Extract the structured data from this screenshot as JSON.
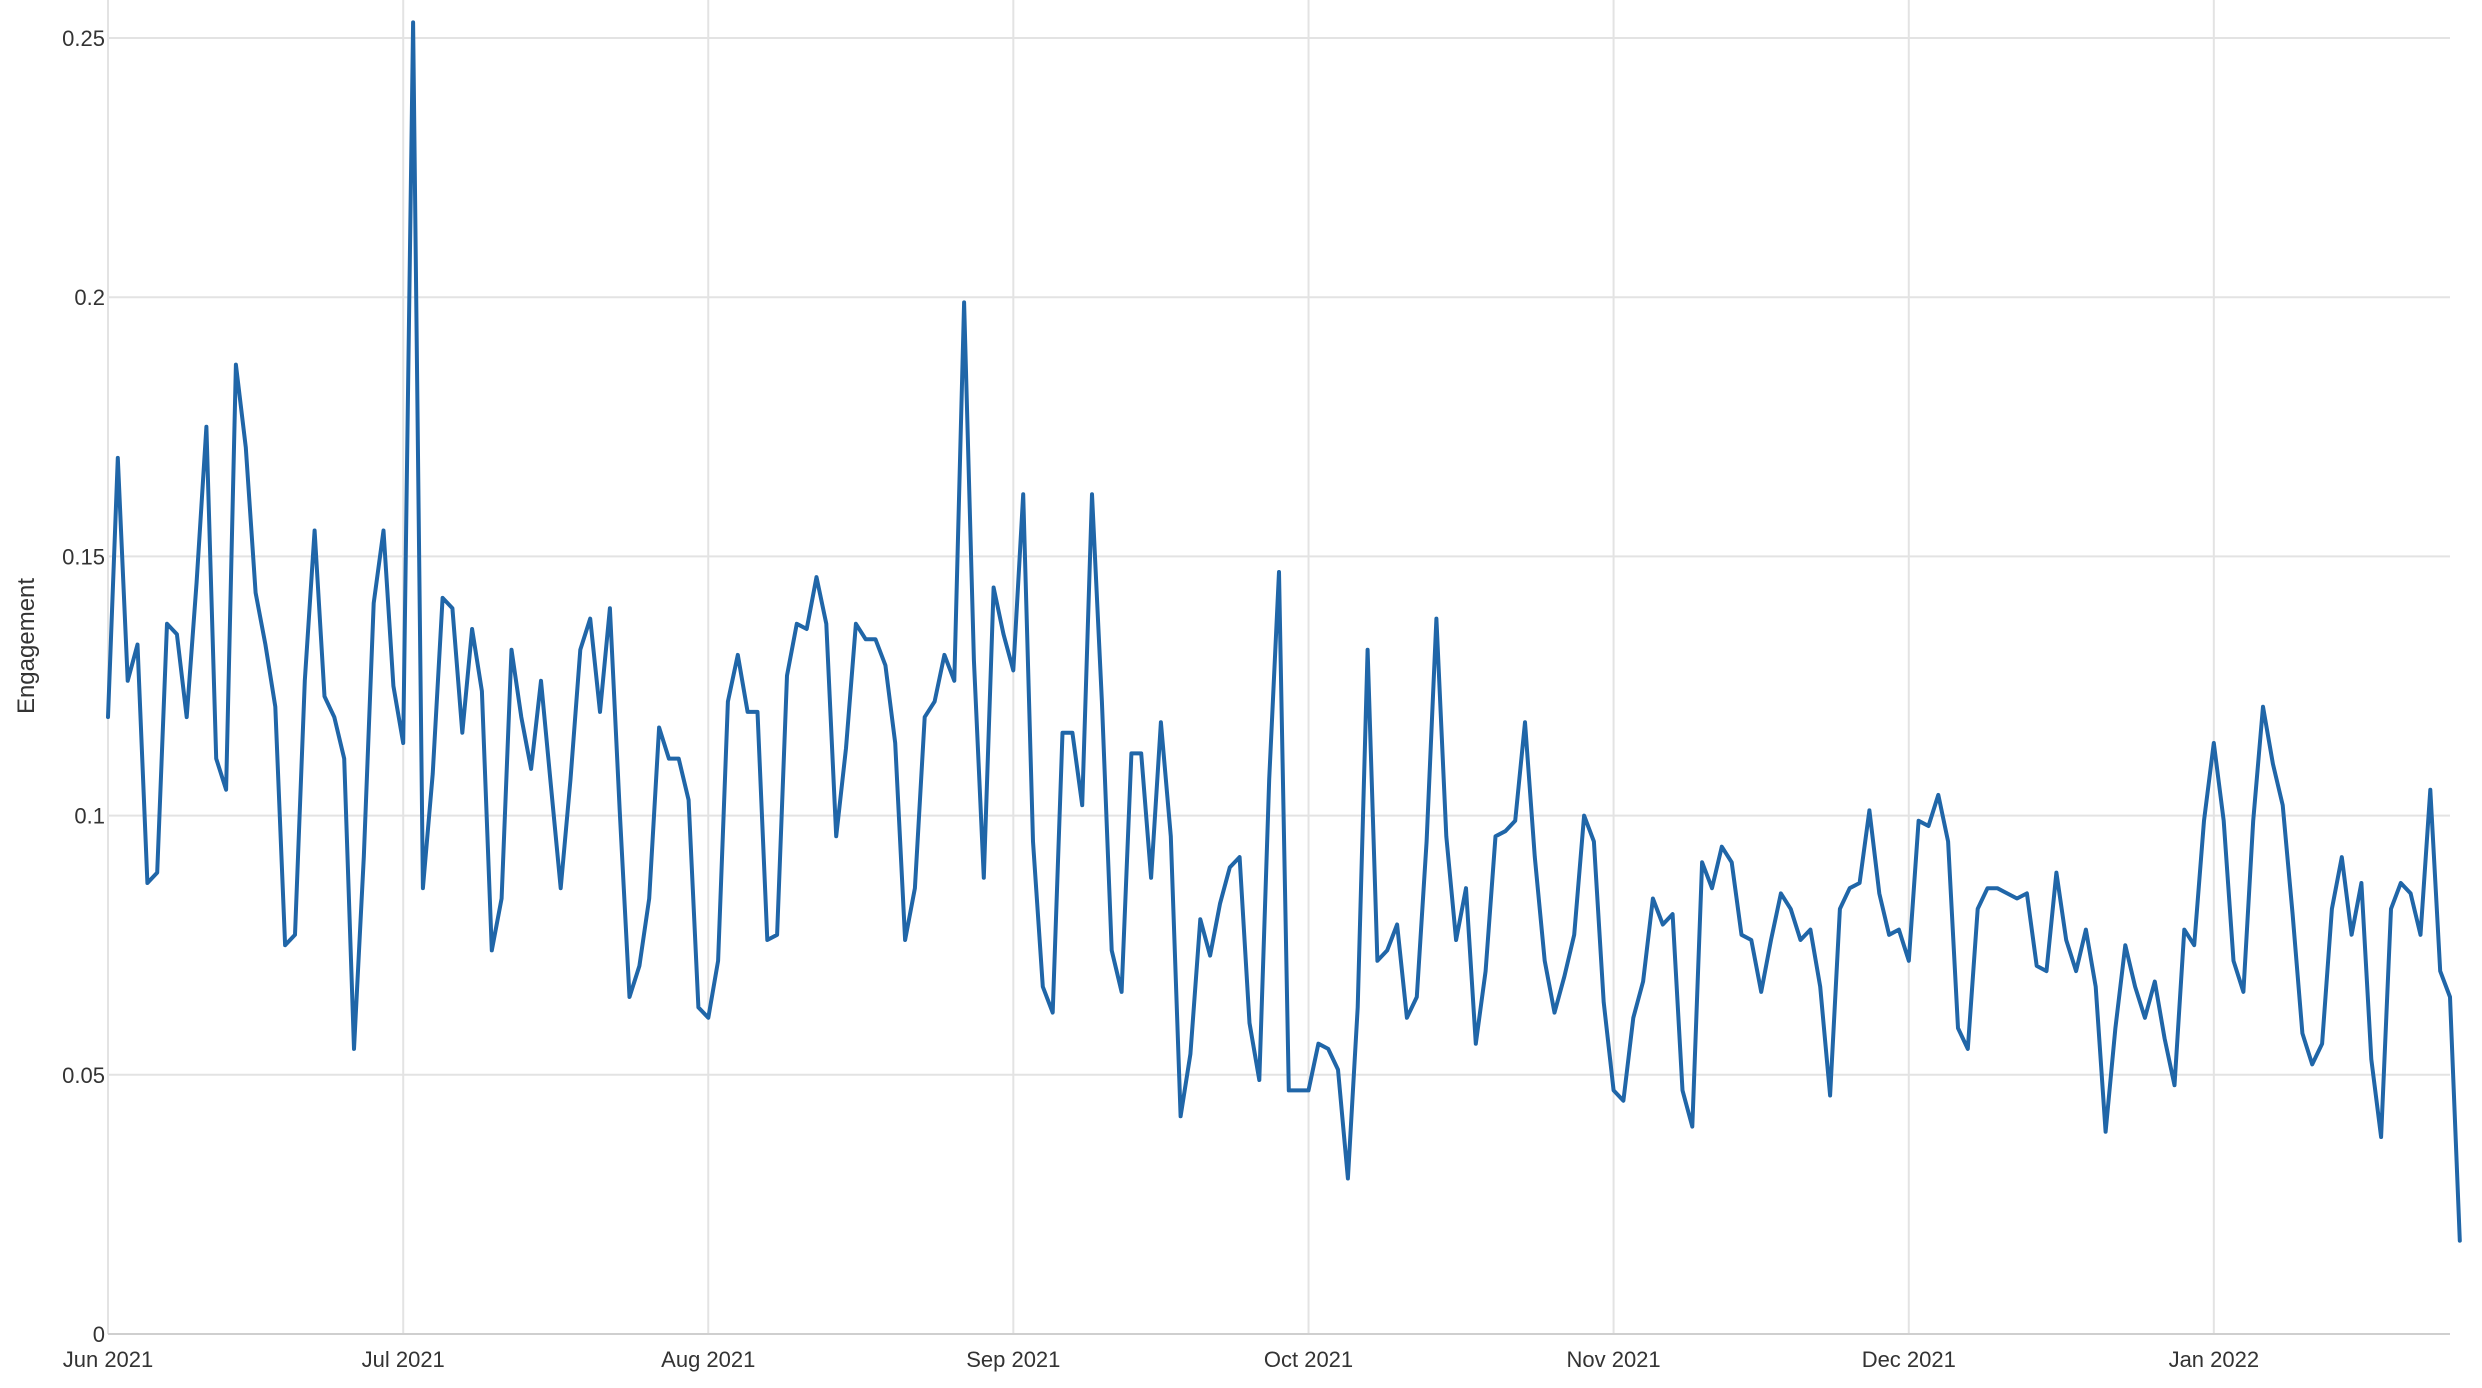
{
  "chart_data": {
    "type": "line",
    "ylabel": "Engagement",
    "xlabel": "",
    "ylim": [
      0,
      0.25
    ],
    "y_ticks": [
      {
        "value": 0,
        "label": "0"
      },
      {
        "value": 0.05,
        "label": "0.05"
      },
      {
        "value": 0.1,
        "label": "0.1"
      },
      {
        "value": 0.15,
        "label": "0.15"
      },
      {
        "value": 0.2,
        "label": "0.2"
      },
      {
        "value": 0.25,
        "label": "0.25"
      }
    ],
    "x_ticks": [
      {
        "date": "2021-06-01",
        "label": "Jun 2021"
      },
      {
        "date": "2021-07-01",
        "label": "Jul 2021"
      },
      {
        "date": "2021-08-01",
        "label": "Aug 2021"
      },
      {
        "date": "2021-09-01",
        "label": "Sep 2021"
      },
      {
        "date": "2021-10-01",
        "label": "Oct 2021"
      },
      {
        "date": "2021-11-01",
        "label": "Nov 2021"
      },
      {
        "date": "2021-12-01",
        "label": "Dec 2021"
      },
      {
        "date": "2022-01-01",
        "label": "Jan 2022"
      }
    ],
    "xlim": [
      "2021-06-01",
      "2022-01-25"
    ],
    "grid": true,
    "color": "#2066a8",
    "series": [
      {
        "start": "2021-06-01",
        "values": [
          0.119,
          0.169,
          0.126,
          0.133,
          0.087,
          0.089,
          0.137,
          0.135,
          0.119,
          0.145,
          0.175,
          0.111,
          0.105,
          0.187,
          0.171,
          0.143,
          0.133,
          0.121,
          0.075,
          0.077,
          0.126,
          0.155,
          0.123,
          0.119,
          0.111,
          0.055,
          0.092,
          0.141,
          0.155,
          0.125,
          0.114,
          0.253,
          0.086,
          0.108,
          0.142,
          0.14,
          0.116,
          0.136,
          0.124,
          0.074,
          0.084,
          0.132,
          0.119,
          0.109,
          0.126,
          0.106,
          0.086,
          0.107,
          0.132,
          0.138,
          0.12,
          0.14,
          0.101,
          0.065,
          0.071,
          0.084,
          0.117,
          0.111,
          0.111,
          0.103,
          0.063,
          0.061,
          0.072,
          0.122,
          0.131,
          0.12,
          0.12,
          0.076,
          0.077,
          0.127,
          0.137,
          0.136,
          0.146,
          0.137,
          0.096,
          0.113,
          0.137,
          0.134,
          0.134,
          0.129,
          0.114,
          0.076,
          0.086,
          0.119,
          0.122,
          0.131,
          0.126,
          0.199,
          0.13,
          0.088,
          0.144,
          0.135,
          0.128,
          0.162,
          0.095,
          0.067,
          0.062,
          0.116,
          0.116,
          0.102,
          0.162,
          0.122,
          0.074,
          0.066,
          0.112,
          0.112,
          0.088,
          0.118,
          0.096,
          0.042,
          0.054,
          0.08,
          0.073,
          0.083,
          0.09,
          0.092,
          0.06,
          0.049,
          0.107,
          0.147,
          0.047,
          0.047,
          0.047,
          0.056,
          0.055,
          0.051,
          0.03,
          0.063,
          0.132,
          0.072,
          0.074,
          0.079,
          0.061,
          0.065,
          0.095,
          0.138,
          0.096,
          0.076,
          0.086,
          0.056,
          0.07,
          0.096,
          0.097,
          0.099,
          0.118,
          0.092,
          0.072,
          0.062,
          0.069,
          0.077,
          0.1,
          0.095,
          0.064,
          0.047,
          0.045,
          0.061,
          0.068,
          0.084,
          0.079,
          0.081,
          0.047,
          0.04,
          0.091,
          0.086,
          0.094,
          0.091,
          0.077,
          0.076,
          0.066,
          0.076,
          0.085,
          0.082,
          0.076,
          0.078,
          0.067,
          0.046,
          0.082,
          0.086,
          0.087,
          0.101,
          0.085,
          0.077,
          0.078,
          0.072,
          0.099,
          0.098,
          0.104,
          0.095,
          0.059,
          0.055,
          0.082,
          0.086,
          0.086,
          0.085,
          0.084,
          0.085,
          0.071,
          0.07,
          0.089,
          0.076,
          0.07,
          0.078,
          0.067,
          0.039,
          0.059,
          0.075,
          0.067,
          0.061,
          0.068,
          0.057,
          0.048,
          0.078,
          0.075,
          0.099,
          0.114,
          0.099,
          0.072,
          0.066,
          0.099,
          0.121,
          0.11,
          0.102,
          0.081,
          0.058,
          0.052,
          0.056,
          0.082,
          0.092,
          0.077,
          0.087,
          0.053,
          0.038,
          0.082,
          0.087,
          0.085,
          0.077,
          0.105,
          0.07,
          0.065,
          0.018
        ]
      }
    ]
  }
}
